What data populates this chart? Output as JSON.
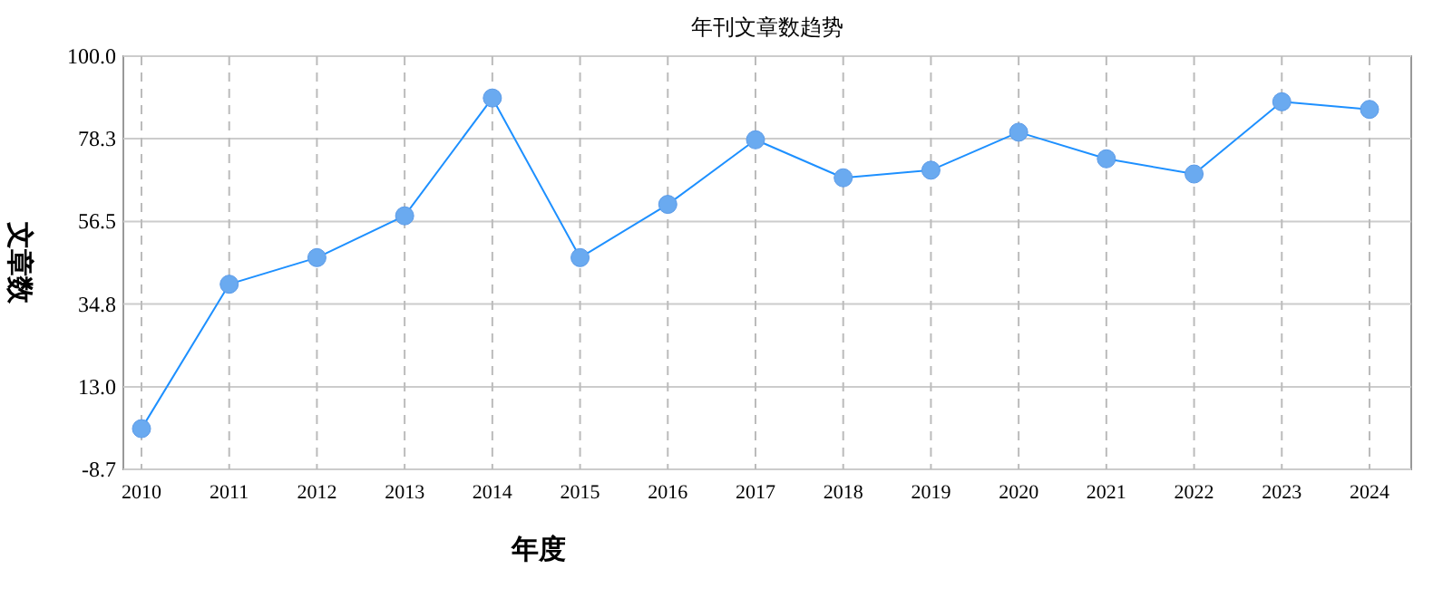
{
  "chart_data": {
    "type": "line",
    "title": "年刊文章数趋势",
    "xlabel": "年度",
    "ylabel": "文章数",
    "categories": [
      "2010",
      "2011",
      "2012",
      "2013",
      "2014",
      "2015",
      "2016",
      "2017",
      "2018",
      "2019",
      "2020",
      "2021",
      "2022",
      "2023",
      "2024"
    ],
    "series": [
      {
        "color": "#1e90ff",
        "values": [
          2,
          40,
          47,
          58,
          89,
          47,
          61,
          78,
          68,
          70,
          80,
          73,
          69,
          88,
          86
        ]
      }
    ],
    "ylim": [
      -8.7,
      100.0
    ],
    "yticks": [
      {
        "value": -8.7,
        "label": "-8.7"
      },
      {
        "value": 13.0,
        "label": "13.0"
      },
      {
        "value": 34.8,
        "label": "34.8"
      },
      {
        "value": 56.5,
        "label": "56.5"
      },
      {
        "value": 78.3,
        "label": "78.3"
      },
      {
        "value": 100.0,
        "label": "100.0"
      }
    ],
    "grid": true,
    "marker": "circle",
    "line_style": "solid"
  }
}
